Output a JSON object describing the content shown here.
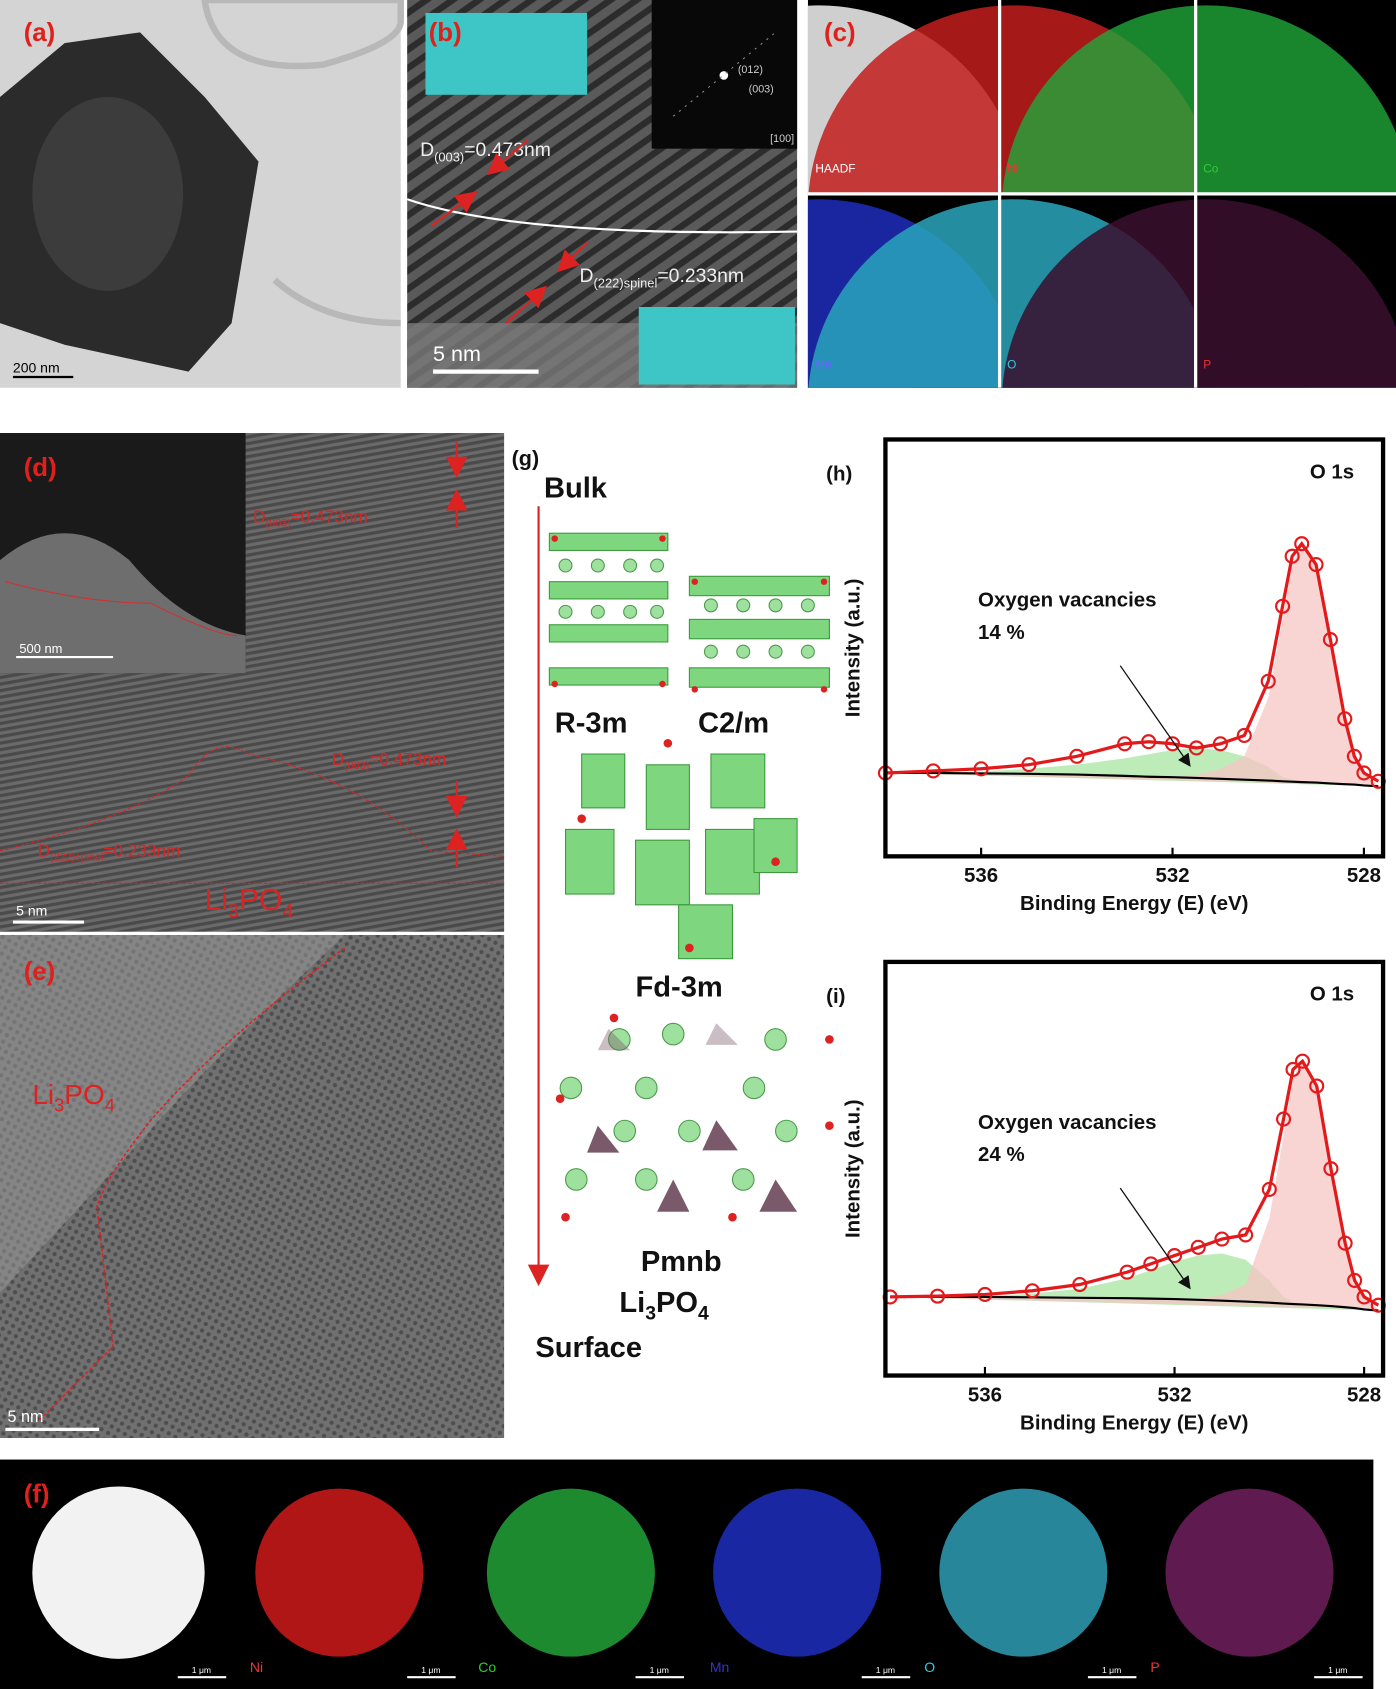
{
  "panels": {
    "a": {
      "label": "(a)",
      "scale_bar": "200 nm"
    },
    "b": {
      "label": "(b)",
      "scale_bar": "5 nm",
      "fft_spots": [
        "(012)",
        "(003)"
      ],
      "zone_axis": "[100]",
      "spacing_1": [
        "D",
        "(003)",
        "=0.473nm"
      ],
      "spacing_2": [
        "D",
        "(222)spinel",
        "=0.233nm"
      ]
    },
    "c": {
      "label": "(c)",
      "maps": [
        "HAADF",
        "Ni",
        "Co",
        "Mn",
        "O",
        "P"
      ]
    },
    "d": {
      "label": "(d)",
      "inset_scale_bar": "500 nm",
      "scale_bar": "5 nm",
      "spacing_1": [
        "D",
        "(003)",
        "=0.473nm"
      ],
      "spacing_2": [
        "D",
        "(003)",
        "=0.473nm"
      ],
      "spacing_3": [
        "D",
        "(222)spinel",
        "=0.233nm"
      ],
      "phase": [
        "Li",
        "3",
        "PO",
        "4"
      ]
    },
    "e": {
      "label": "(e)",
      "phase": [
        "Li",
        "3",
        "PO",
        "4"
      ],
      "scale_bar": "5 nm"
    },
    "f": {
      "label": "(f)",
      "maps": [
        "Ni",
        "Co",
        "Mn",
        "O",
        "P"
      ],
      "scale_bars": [
        "1 μm",
        "1 μm",
        "1 μm",
        "1 μm",
        "1 μm",
        "1 μm"
      ]
    },
    "g": {
      "label": "(g)",
      "top": "Bulk",
      "bottom": "Surface",
      "structures": [
        "R-3m",
        "C2/m",
        "Fd-3m",
        "Pmnb"
      ],
      "phase": [
        "Li",
        "3",
        "PO",
        "4"
      ]
    }
  },
  "chart_data": [
    {
      "type": "line",
      "panel_label": "(h)",
      "x_label": "Binding Energy (E) (eV)",
      "y_label": "Intensity (a.u.)",
      "annotations": [
        "Oxygen vacancies",
        "14 %"
      ],
      "x": [
        538,
        537,
        536,
        535,
        534,
        533,
        532.5,
        532,
        531.5,
        531,
        530.5,
        530,
        529.7,
        529.5,
        529.3,
        529,
        528.7,
        528.4,
        528.2,
        528,
        527.7
      ],
      "xlim": [
        538,
        527.6
      ],
      "xticks": [
        536,
        532,
        528
      ],
      "ylim": [
        0,
        100
      ],
      "series": [
        {
          "color": "#a8e6a0",
          "style": "area",
          "values": [
            20,
            20,
            20.3,
            21,
            22,
            23.5,
            24.5,
            25.5,
            26,
            25.5,
            24,
            21.5,
            19,
            18.5,
            18,
            17.8,
            17.5,
            17.3,
            17.2,
            17,
            16.8
          ]
        },
        {
          "color": "#f6c6c4",
          "style": "area",
          "values": [
            20,
            20,
            19.9,
            19.8,
            19.6,
            19.3,
            19.1,
            19.2,
            19.5,
            21,
            24,
            38,
            57,
            70,
            75,
            70,
            52,
            33,
            24,
            20,
            17
          ]
        },
        {
          "color": "#000000",
          "style": "line",
          "values": [
            20,
            20,
            19.9,
            19.8,
            19.6,
            19.3,
            19.1,
            19,
            18.8,
            18.6,
            18.4,
            18.2,
            18,
            17.9,
            17.8,
            17.7,
            17.5,
            17.3,
            17.2,
            17,
            16.8
          ]
        },
        {
          "color": "#e31a1c",
          "style": "line",
          "values": [
            20,
            20.5,
            21,
            22,
            24,
            27,
            27.5,
            27,
            26,
            27,
            29,
            42,
            60,
            72,
            75,
            70,
            52,
            33,
            24,
            20,
            18
          ]
        },
        {
          "name": "O 1s",
          "color": "#e31a1c",
          "style": "markers",
          "values": [
            20,
            20.5,
            21,
            22,
            24,
            27,
            27.5,
            27,
            26,
            27,
            29,
            42,
            60,
            72,
            75,
            70,
            52,
            33,
            24,
            20,
            18
          ]
        }
      ]
    },
    {
      "type": "line",
      "panel_label": "(i)",
      "x_label": "Binding Energy (E) (eV)",
      "y_label": "Intensity (a.u.)",
      "annotations": [
        "Oxygen vacancies",
        "24 %"
      ],
      "x": [
        538,
        537,
        536,
        535,
        534,
        533,
        532.5,
        532,
        531.5,
        531,
        530.5,
        530,
        529.7,
        529.5,
        529.3,
        529,
        528.7,
        528.4,
        528.2,
        528,
        527.7
      ],
      "xlim": [
        538.1,
        527.6
      ],
      "xticks": [
        536,
        532,
        528
      ],
      "ylim": [
        0,
        100
      ],
      "series": [
        {
          "color": "#a8e6a0",
          "style": "area",
          "values": [
            19,
            19,
            19.2,
            19.8,
            21,
            23.5,
            25.5,
            27.5,
            29,
            29.5,
            28,
            23,
            19,
            17.8,
            17.4,
            17.2,
            17,
            16.6,
            16.3,
            16,
            15.7
          ]
        },
        {
          "color": "#f6c6c4",
          "style": "area",
          "values": [
            19,
            19,
            19,
            18.9,
            18.8,
            18.7,
            18.6,
            18.5,
            18.5,
            19.5,
            22,
            38,
            58,
            72,
            76,
            70,
            50,
            32,
            23,
            19,
            16
          ]
        },
        {
          "color": "#000000",
          "style": "line",
          "values": [
            19,
            19,
            19,
            18.9,
            18.8,
            18.7,
            18.6,
            18.5,
            18.3,
            18.1,
            17.9,
            17.6,
            17.4,
            17.3,
            17.2,
            17,
            16.8,
            16.5,
            16.3,
            16,
            15.7
          ]
        },
        {
          "color": "#e31a1c",
          "style": "line",
          "values": [
            19,
            19.2,
            19.6,
            20.5,
            22,
            25,
            27,
            29,
            31,
            33,
            34,
            45,
            62,
            74,
            76,
            70,
            50,
            32,
            23,
            19,
            17
          ]
        },
        {
          "name": "O 1s",
          "color": "#e31a1c",
          "style": "markers",
          "values": [
            19,
            19.2,
            19.6,
            20.5,
            22,
            25,
            27,
            29,
            31,
            33,
            34,
            45,
            62,
            74,
            76,
            70,
            50,
            32,
            23,
            19,
            17
          ]
        }
      ]
    }
  ]
}
